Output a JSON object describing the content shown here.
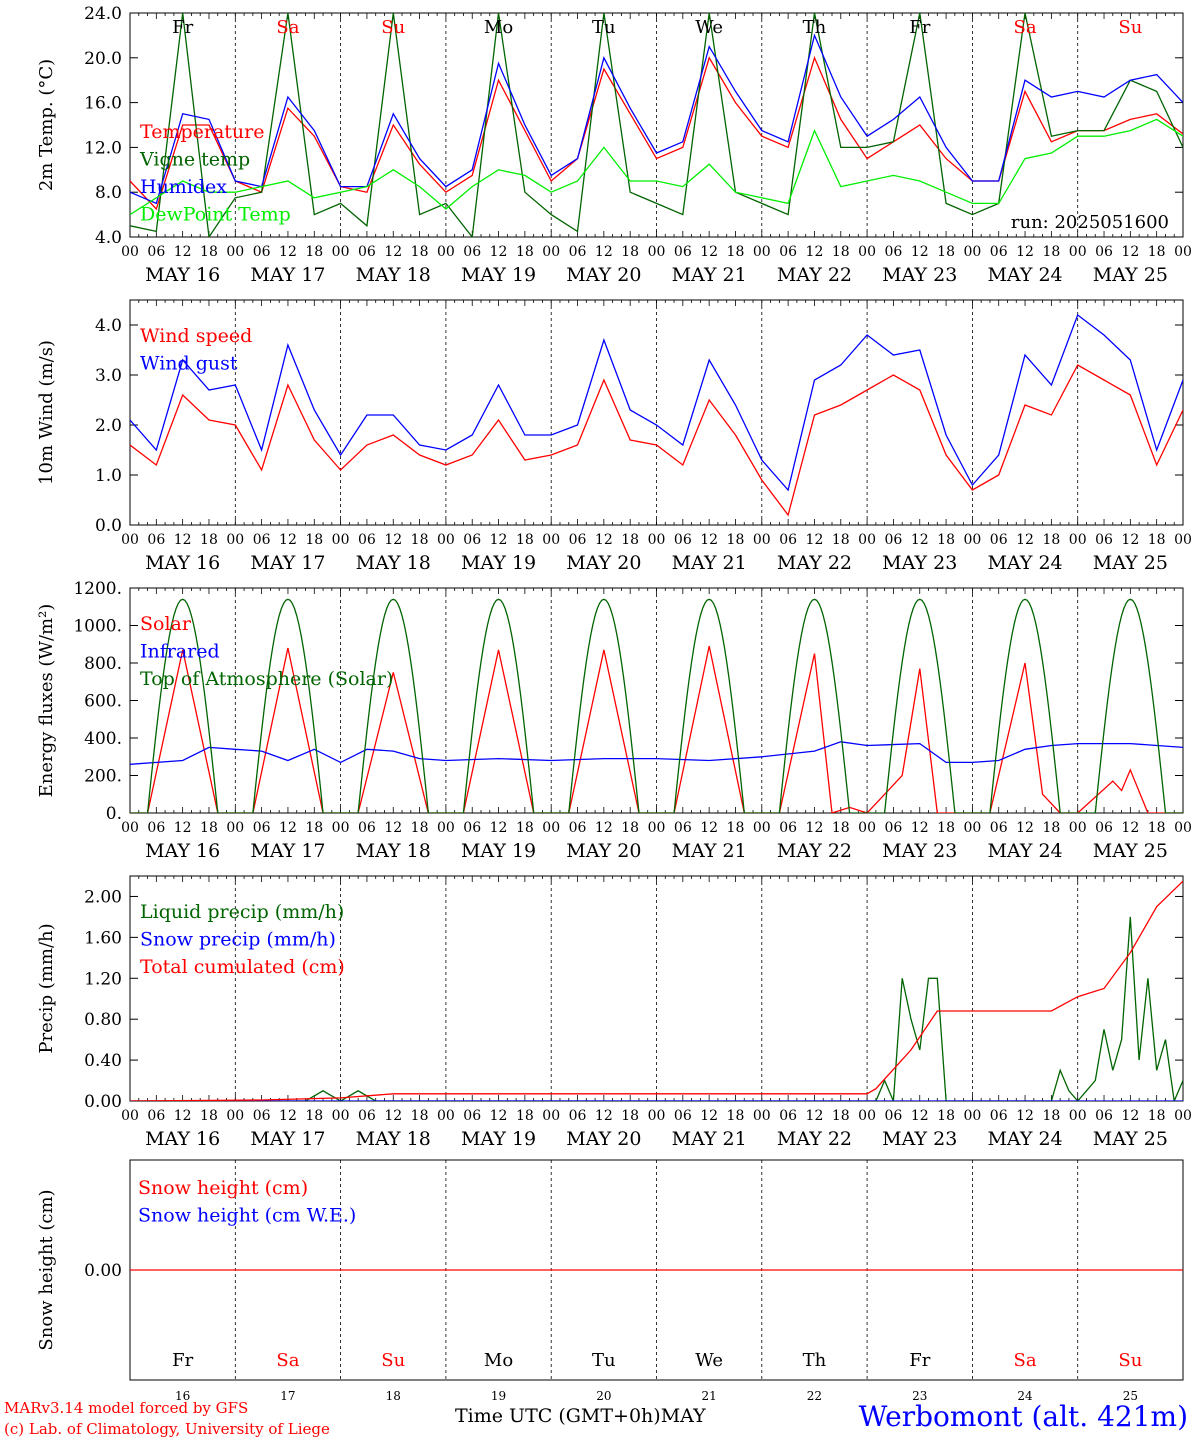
{
  "chart_data": [
    {
      "type": "line",
      "ylabel": "2m Temp. (°C)",
      "ylim": [
        4.0,
        24.0
      ],
      "yticks": [
        "4.0",
        "8.0",
        "12.0",
        "16.0",
        "20.0",
        "24.0"
      ],
      "annotation": "run: 2025051600",
      "series": [
        {
          "name": "Temperature",
          "color": "#ff0000",
          "x": [
            0,
            6,
            12,
            18,
            24,
            30,
            36,
            42,
            48,
            54,
            60,
            66,
            72,
            78,
            84,
            90,
            96,
            102,
            108,
            114,
            120,
            126,
            132,
            138,
            144,
            150,
            156,
            162,
            168,
            174,
            180,
            186,
            192,
            198,
            204,
            210,
            216,
            222,
            228,
            234,
            240
          ],
          "y": [
            9,
            6.5,
            14,
            14,
            9,
            8,
            15.5,
            13,
            8.5,
            8,
            14,
            10.5,
            8,
            9.5,
            18,
            13.5,
            9,
            11,
            19,
            15,
            11,
            12,
            20,
            16,
            13,
            12,
            20,
            14.5,
            11,
            12.5,
            14,
            11,
            9,
            9,
            17,
            12.5,
            13.5,
            13.5,
            14.5,
            15,
            13.2
          ]
        },
        {
          "name": "Vigne temp",
          "color": "#006400",
          "x": [
            0,
            6,
            12,
            18,
            24,
            30,
            36,
            42,
            48,
            54,
            60,
            66,
            72,
            78,
            84,
            90,
            96,
            102,
            108,
            114,
            120,
            126,
            132,
            138,
            144,
            150,
            156,
            162,
            168,
            174,
            180,
            186,
            192,
            198,
            204,
            210,
            216,
            222,
            228,
            234,
            240
          ],
          "y": [
            5,
            4.5,
            24,
            4,
            7.5,
            8,
            24,
            6,
            7,
            5,
            24,
            6,
            7,
            4,
            24,
            8,
            6,
            4.5,
            24,
            8,
            7,
            6,
            24,
            8,
            7,
            6,
            24,
            12,
            12,
            12.5,
            24,
            7,
            6,
            7,
            24,
            13,
            13.5,
            13.5,
            18,
            17,
            12
          ]
        },
        {
          "name": "Humidex",
          "color": "#0000ff",
          "x": [
            0,
            6,
            12,
            18,
            24,
            30,
            36,
            42,
            48,
            54,
            60,
            66,
            72,
            78,
            84,
            90,
            96,
            102,
            108,
            114,
            120,
            126,
            132,
            138,
            144,
            150,
            156,
            162,
            168,
            174,
            180,
            186,
            192,
            198,
            204,
            210,
            216,
            222,
            228,
            234,
            240
          ],
          "y": [
            8,
            7,
            15,
            14.5,
            9,
            8.5,
            16.5,
            13.5,
            8.5,
            8.5,
            15,
            11,
            8.5,
            10,
            19.5,
            14,
            9.5,
            11,
            20,
            15.5,
            11.5,
            12.5,
            21,
            17,
            13.5,
            12.5,
            22,
            16.5,
            13,
            14.5,
            16.5,
            12,
            9,
            9,
            18,
            16.5,
            17,
            16.5,
            18,
            18.5,
            16
          ]
        },
        {
          "name": "DewPoint Temp",
          "color": "#00ee00",
          "x": [
            0,
            6,
            12,
            18,
            24,
            30,
            36,
            42,
            48,
            54,
            60,
            66,
            72,
            78,
            84,
            90,
            96,
            102,
            108,
            114,
            120,
            126,
            132,
            138,
            144,
            150,
            156,
            162,
            168,
            174,
            180,
            186,
            192,
            198,
            204,
            210,
            216,
            222,
            228,
            234,
            240
          ],
          "y": [
            6,
            7.5,
            9,
            8,
            8,
            8.5,
            9,
            7.5,
            8,
            8.5,
            10,
            8.5,
            6.5,
            8.5,
            10,
            9.5,
            8,
            9,
            12,
            9,
            9,
            8.5,
            10.5,
            8,
            7.5,
            7,
            13.5,
            8.5,
            9,
            9.5,
            9,
            8,
            7,
            7,
            11,
            11.5,
            13,
            13,
            13.5,
            14.5,
            13
          ]
        }
      ]
    },
    {
      "type": "line",
      "ylabel": "10m Wind (m/s)",
      "ylim": [
        0.0,
        4.5
      ],
      "yticks": [
        "0.0",
        "1.0",
        "2.0",
        "3.0",
        "4.0"
      ],
      "series": [
        {
          "name": "Wind speed",
          "color": "#ff0000",
          "x": [
            0,
            6,
            12,
            18,
            24,
            30,
            36,
            42,
            48,
            54,
            60,
            66,
            72,
            78,
            84,
            90,
            96,
            102,
            108,
            114,
            120,
            126,
            132,
            138,
            144,
            150,
            156,
            162,
            168,
            174,
            180,
            186,
            192,
            198,
            204,
            210,
            216,
            222,
            228,
            234,
            240
          ],
          "y": [
            1.6,
            1.2,
            2.6,
            2.1,
            2.0,
            1.1,
            2.8,
            1.7,
            1.1,
            1.6,
            1.8,
            1.4,
            1.2,
            1.4,
            2.1,
            1.3,
            1.4,
            1.6,
            2.9,
            1.7,
            1.6,
            1.2,
            2.5,
            1.8,
            0.9,
            0.2,
            2.2,
            2.4,
            2.7,
            3.0,
            2.7,
            1.4,
            0.7,
            1.0,
            2.4,
            2.2,
            3.2,
            2.9,
            2.6,
            1.2,
            2.3
          ]
        },
        {
          "name": "Wind gust",
          "color": "#0000ff",
          "x": [
            0,
            6,
            12,
            18,
            24,
            30,
            36,
            42,
            48,
            54,
            60,
            66,
            72,
            78,
            84,
            90,
            96,
            102,
            108,
            114,
            120,
            126,
            132,
            138,
            144,
            150,
            156,
            162,
            168,
            174,
            180,
            186,
            192,
            198,
            204,
            210,
            216,
            222,
            228,
            234,
            240
          ],
          "y": [
            2.1,
            1.5,
            3.3,
            2.7,
            2.8,
            1.5,
            3.6,
            2.3,
            1.4,
            2.2,
            2.2,
            1.6,
            1.5,
            1.8,
            2.8,
            1.8,
            1.8,
            2.0,
            3.7,
            2.3,
            2.0,
            1.6,
            3.3,
            2.4,
            1.3,
            0.7,
            2.9,
            3.2,
            3.8,
            3.4,
            3.5,
            1.8,
            0.8,
            1.4,
            3.4,
            2.8,
            4.2,
            3.8,
            3.3,
            1.5,
            2.9
          ]
        }
      ]
    },
    {
      "type": "line",
      "ylabel": "Energy fluxes (W/m²)",
      "ylim": [
        0,
        1200
      ],
      "yticks": [
        "0.",
        "200.",
        "400.",
        "600.",
        "800.",
        "1000.",
        "1200."
      ],
      "series": [
        {
          "name": "Solar",
          "color": "#ff0000",
          "x": [
            0,
            4,
            12,
            20,
            24,
            28,
            36,
            44,
            48,
            52,
            60,
            68,
            72,
            76,
            84,
            92,
            96,
            100,
            108,
            116,
            120,
            124,
            132,
            140,
            144,
            148,
            156,
            160,
            164,
            168,
            176,
            180,
            184,
            188,
            192,
            196,
            204,
            208,
            212,
            216,
            224,
            226,
            228,
            232,
            240
          ],
          "y": [
            0,
            0,
            870,
            0,
            0,
            0,
            880,
            0,
            0,
            0,
            750,
            0,
            0,
            0,
            870,
            0,
            0,
            0,
            870,
            0,
            0,
            0,
            890,
            0,
            0,
            0,
            850,
            0,
            30,
            0,
            200,
            770,
            0,
            0,
            0,
            0,
            800,
            100,
            0,
            0,
            170,
            120,
            230,
            0,
            0
          ]
        },
        {
          "name": "Infrared",
          "color": "#0000ff",
          "x": [
            0,
            12,
            18,
            24,
            30,
            36,
            42,
            48,
            54,
            60,
            66,
            72,
            84,
            96,
            108,
            120,
            132,
            144,
            156,
            162,
            168,
            180,
            186,
            192,
            198,
            204,
            210,
            216,
            228,
            240
          ],
          "y": [
            260,
            280,
            350,
            340,
            330,
            280,
            340,
            270,
            340,
            330,
            290,
            280,
            290,
            280,
            290,
            290,
            280,
            300,
            330,
            380,
            360,
            370,
            270,
            270,
            280,
            340,
            360,
            370,
            370,
            350
          ]
        },
        {
          "name": "Top of Atmosphere (Solar)",
          "color": "#006400",
          "sunrise_hour": 4,
          "sunset_hour": 20,
          "peak": 1140,
          "x": [
            0,
            1,
            2,
            3,
            4,
            5,
            6,
            7,
            8,
            9
          ],
          "y": [
            1140,
            1140,
            1140,
            1140,
            1140,
            1140,
            1140,
            1140,
            1140,
            1140
          ]
        }
      ]
    },
    {
      "type": "line",
      "ylabel": "Precip (mm/h)",
      "ylim": [
        0.0,
        2.2
      ],
      "yticks": [
        "0.00",
        "0.40",
        "0.80",
        "1.20",
        "1.60",
        "2.00"
      ],
      "series": [
        {
          "name": "Liquid precip (mm/h)",
          "color": "#006400",
          "x": [
            0,
            40,
            44,
            48,
            52,
            56,
            60,
            170,
            172,
            174,
            176,
            178,
            180,
            182,
            184,
            186,
            190,
            210,
            212,
            214,
            216,
            218,
            220,
            222,
            224,
            226,
            228,
            230,
            232,
            234,
            236,
            238,
            240
          ],
          "y": [
            0,
            0,
            0.1,
            0,
            0.1,
            0,
            0,
            0,
            0.2,
            0,
            1.2,
            0.8,
            0.5,
            1.2,
            1.2,
            0,
            0,
            0,
            0.3,
            0.1,
            0,
            0.1,
            0.2,
            0.7,
            0.3,
            0.6,
            1.8,
            0.4,
            1.2,
            0.3,
            0.6,
            0,
            0.2
          ]
        },
        {
          "name": "Snow precip (mm/h)",
          "color": "#0000ff",
          "x": [
            0,
            240
          ],
          "y": [
            0,
            0
          ]
        },
        {
          "name": "Total cumulated (cm)",
          "color": "#ff0000",
          "x": [
            0,
            30,
            48,
            60,
            168,
            170,
            178,
            184,
            210,
            216,
            222,
            228,
            234,
            240
          ],
          "y": [
            0,
            0.01,
            0.03,
            0.07,
            0.07,
            0.12,
            0.5,
            0.88,
            0.88,
            1.02,
            1.1,
            1.45,
            1.9,
            2.15
          ]
        }
      ]
    },
    {
      "type": "line",
      "ylabel": "Snow height (cm)",
      "ylim": [
        -1,
        1
      ],
      "yticks": [
        "0.00"
      ],
      "series": [
        {
          "name": "Snow height (cm)",
          "color": "#ff0000",
          "x": [
            0,
            240
          ],
          "y": [
            0,
            0
          ]
        },
        {
          "name": "Snow height (cm W.E.)",
          "color": "#0000ff",
          "x": [],
          "y": []
        }
      ]
    }
  ],
  "axis": {
    "hour_ticks": [
      "00",
      "06",
      "12",
      "18"
    ],
    "hour_end": "00",
    "dates": [
      "MAY 16",
      "MAY 17",
      "MAY 18",
      "MAY 19",
      "MAY 20",
      "MAY 21",
      "MAY 22",
      "MAY 23",
      "MAY 24",
      "MAY 25"
    ],
    "weekdays": [
      {
        "label": "Fr",
        "color": "#000000"
      },
      {
        "label": "Sa",
        "color": "#ff0000"
      },
      {
        "label": "Su",
        "color": "#ff0000"
      },
      {
        "label": "Mo",
        "color": "#000000"
      },
      {
        "label": "Tu",
        "color": "#000000"
      },
      {
        "label": "We",
        "color": "#000000"
      },
      {
        "label": "Th",
        "color": "#000000"
      },
      {
        "label": "Fr",
        "color": "#000000"
      },
      {
        "label": "Sa",
        "color": "#ff0000"
      },
      {
        "label": "Su",
        "color": "#ff0000"
      }
    ],
    "day_numbers": [
      "16",
      "17",
      "18",
      "19",
      "20",
      "21",
      "22",
      "23",
      "24",
      "25"
    ]
  },
  "footer": {
    "credit_line1": "MARv3.14 model forced by GFS",
    "credit_line2": "(c) Lab. of Climatology, University of Liege",
    "xlabel": "Time UTC (GMT+0h)MAY",
    "station": "Werbomont (alt. 421m)"
  }
}
